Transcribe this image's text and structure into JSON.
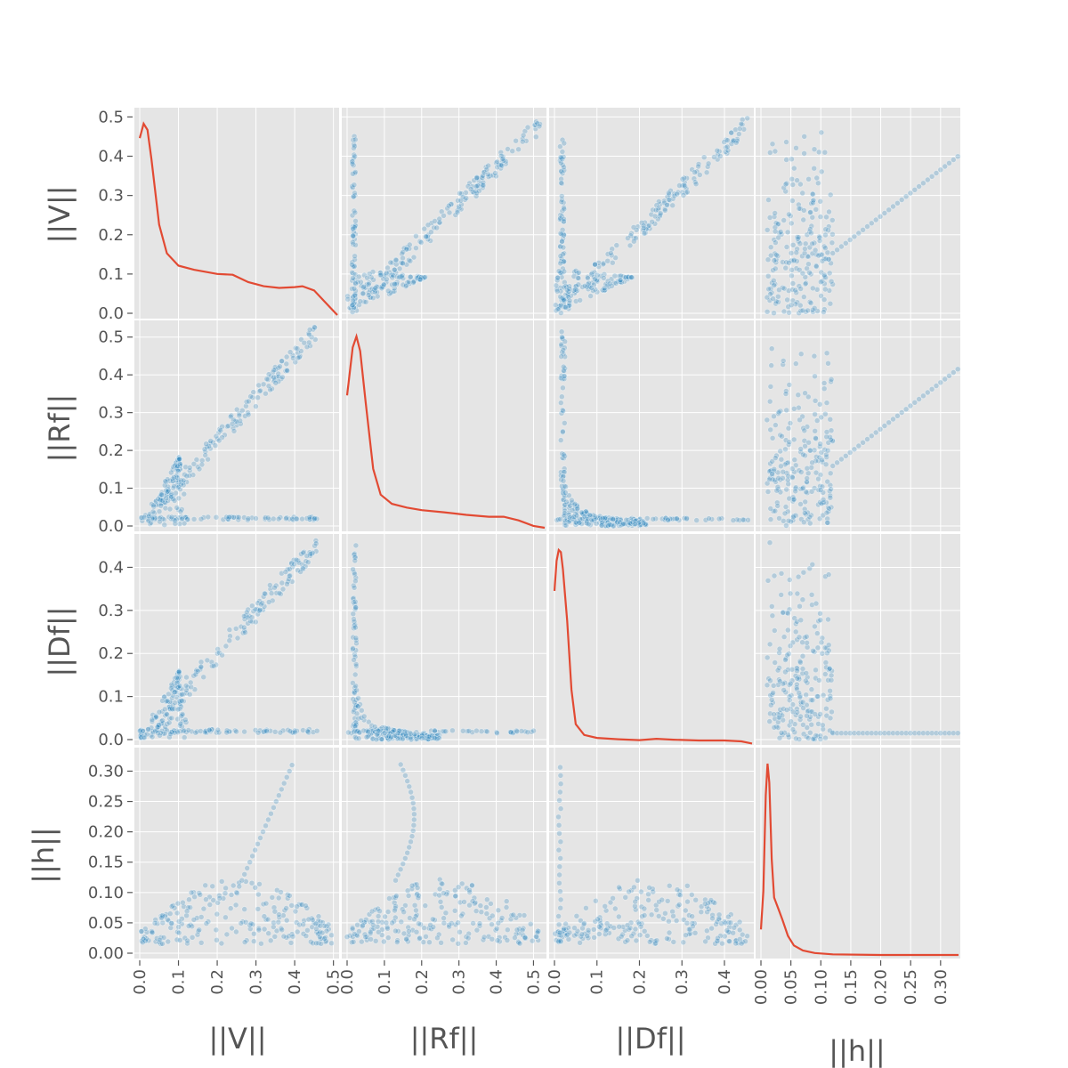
{
  "chart_data": {
    "type": "scatter",
    "subtype": "scatter-matrix",
    "title": "",
    "diagonal": "kde",
    "colors": {
      "points": "#348abd",
      "kde": "#e24a33",
      "panel_background": "#e5e5e5",
      "grid": "#ffffff"
    },
    "grid": true,
    "variables": [
      {
        "name": "||V||",
        "range": [
          0,
          0.51
        ],
        "ticks": [
          0.0,
          0.1,
          0.2,
          0.3,
          0.4,
          0.5
        ],
        "tick_labels": [
          "0.0",
          "0.1",
          "0.2",
          "0.3",
          "0.4",
          "0.5"
        ]
      },
      {
        "name": "||Rf||",
        "range": [
          0,
          0.53
        ],
        "ticks": [
          0.0,
          0.1,
          0.2,
          0.3,
          0.4,
          0.5
        ],
        "tick_labels": [
          "0.0",
          "0.1",
          "0.2",
          "0.3",
          "0.4",
          "0.5"
        ]
      },
      {
        "name": "||Df||",
        "range": [
          0,
          0.465
        ],
        "ticks": [
          0.0,
          0.1,
          0.2,
          0.3,
          0.4
        ],
        "tick_labels": [
          "0.0",
          "0.1",
          "0.2",
          "0.3",
          "0.4"
        ]
      },
      {
        "name": "||h||",
        "range": [
          0,
          0.33
        ],
        "ticks": [
          0.0,
          0.05,
          0.1,
          0.15,
          0.2,
          0.25,
          0.3
        ],
        "tick_labels": [
          "0.00",
          "0.05",
          "0.10",
          "0.15",
          "0.20",
          "0.25",
          "0.30"
        ]
      }
    ],
    "kde_curves": [
      {
        "variable": "||V||",
        "points": [
          [
            0.0,
            0.43
          ],
          [
            0.01,
            0.465
          ],
          [
            0.02,
            0.45
          ],
          [
            0.03,
            0.38
          ],
          [
            0.05,
            0.22
          ],
          [
            0.07,
            0.15
          ],
          [
            0.1,
            0.12
          ],
          [
            0.14,
            0.11
          ],
          [
            0.2,
            0.1
          ],
          [
            0.24,
            0.098
          ],
          [
            0.28,
            0.08
          ],
          [
            0.32,
            0.07
          ],
          [
            0.36,
            0.066
          ],
          [
            0.4,
            0.068
          ],
          [
            0.42,
            0.07
          ],
          [
            0.45,
            0.06
          ],
          [
            0.48,
            0.03
          ],
          [
            0.51,
            0.0
          ]
        ]
      },
      {
        "variable": "||Rf||",
        "points": [
          [
            0.0,
            0.36
          ],
          [
            0.015,
            0.49
          ],
          [
            0.025,
            0.52
          ],
          [
            0.035,
            0.48
          ],
          [
            0.05,
            0.34
          ],
          [
            0.07,
            0.16
          ],
          [
            0.09,
            0.09
          ],
          [
            0.12,
            0.065
          ],
          [
            0.16,
            0.055
          ],
          [
            0.2,
            0.048
          ],
          [
            0.26,
            0.042
          ],
          [
            0.32,
            0.035
          ],
          [
            0.38,
            0.03
          ],
          [
            0.42,
            0.03
          ],
          [
            0.46,
            0.02
          ],
          [
            0.5,
            0.005
          ],
          [
            0.53,
            0.0
          ]
        ]
      },
      {
        "variable": "||Df||",
        "points": [
          [
            0.0,
            0.35
          ],
          [
            0.005,
            0.42
          ],
          [
            0.01,
            0.445
          ],
          [
            0.015,
            0.44
          ],
          [
            0.02,
            0.4
          ],
          [
            0.03,
            0.28
          ],
          [
            0.04,
            0.12
          ],
          [
            0.05,
            0.04
          ],
          [
            0.07,
            0.015
          ],
          [
            0.1,
            0.008
          ],
          [
            0.15,
            0.005
          ],
          [
            0.2,
            0.003
          ],
          [
            0.24,
            0.006
          ],
          [
            0.28,
            0.004
          ],
          [
            0.34,
            0.002
          ],
          [
            0.4,
            0.002
          ],
          [
            0.44,
            0.0
          ],
          [
            0.465,
            -0.005
          ]
        ]
      },
      {
        "variable": "||h||",
        "points": [
          [
            0.0,
            0.04
          ],
          [
            0.004,
            0.1
          ],
          [
            0.008,
            0.25
          ],
          [
            0.011,
            0.3
          ],
          [
            0.014,
            0.27
          ],
          [
            0.018,
            0.15
          ],
          [
            0.022,
            0.09
          ],
          [
            0.03,
            0.07
          ],
          [
            0.036,
            0.055
          ],
          [
            0.045,
            0.03
          ],
          [
            0.055,
            0.015
          ],
          [
            0.07,
            0.007
          ],
          [
            0.09,
            0.003
          ],
          [
            0.12,
            0.001
          ],
          [
            0.2,
            0.0
          ],
          [
            0.33,
            0.0
          ]
        ]
      }
    ]
  }
}
